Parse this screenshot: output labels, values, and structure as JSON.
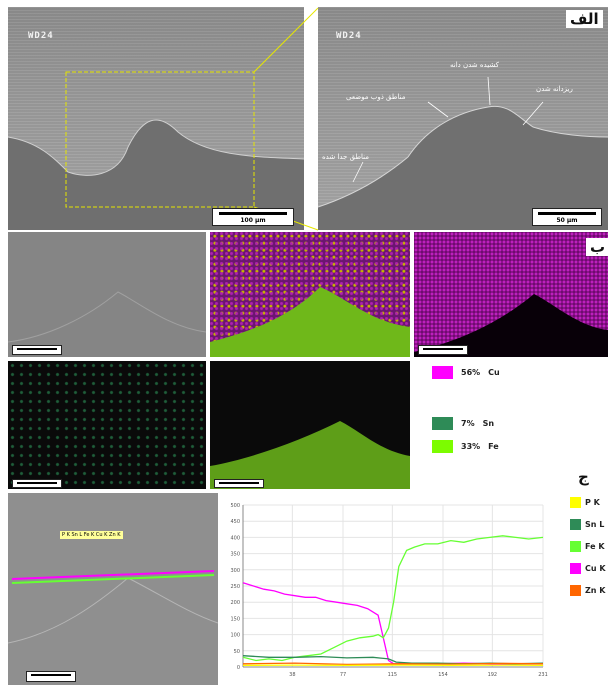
{
  "labels": {
    "a": "الف",
    "b": "ب",
    "c": "ج"
  },
  "sem_tag": "WD24",
  "scale_bars": {
    "s100": "100 µm",
    "s50": "50 µm",
    "s_small": "100 µm"
  },
  "annotations": {
    "stretched_grain": "کشیده شدن دانه",
    "local_melting": "مناطق ذوب موضعی",
    "sand_particles": "ریزدانه شدن",
    "detached_regions": "مناطق جدا شده"
  },
  "eds_legend": [
    {
      "pct": "56%",
      "el": "Cu",
      "color": "#ff00ff"
    },
    {
      "pct": "7%",
      "el": "Sn",
      "color": "#2e8b57"
    },
    {
      "pct": "33%",
      "el": "Fe",
      "color": "#7cfc00"
    }
  ],
  "element_legend": [
    {
      "name": "P K",
      "color": "#ffff00"
    },
    {
      "name": "Sn L",
      "color": "#2e8b57"
    },
    {
      "name": "Fe K",
      "color": "#66ff33"
    },
    {
      "name": "Cu K",
      "color": "#ff00ff"
    },
    {
      "name": "Zn K",
      "color": "#ff6600"
    }
  ],
  "line_tag": "P K  Sn L  Fe K  Cu K  Zn K",
  "chart_data": {
    "type": "line",
    "title": "",
    "xlabel": "",
    "ylabel": "",
    "ylim": [
      0,
      500
    ],
    "xlim": [
      0,
      231
    ],
    "y_ticks": [
      "0",
      "50",
      "100",
      "150",
      "200",
      "250",
      "300",
      "350",
      "400",
      "450",
      "500"
    ],
    "x_ticks": [
      "38",
      "77",
      "115",
      "154",
      "192",
      "231"
    ],
    "series": [
      {
        "name": "Cu K",
        "color": "#ff00ff",
        "x": [
          0,
          8,
          16,
          24,
          32,
          40,
          48,
          56,
          64,
          72,
          80,
          88,
          96,
          104,
          108,
          112,
          116,
          122,
          130,
          150,
          170,
          190,
          210,
          231
        ],
        "values": [
          260,
          250,
          240,
          235,
          225,
          220,
          215,
          215,
          205,
          200,
          195,
          190,
          180,
          160,
          90,
          20,
          10,
          10,
          10,
          10,
          12,
          10,
          10,
          10
        ]
      },
      {
        "name": "Fe K",
        "color": "#66ff33",
        "x": [
          0,
          10,
          20,
          30,
          40,
          50,
          60,
          70,
          80,
          90,
          100,
          104,
          108,
          112,
          116,
          120,
          126,
          132,
          140,
          150,
          160,
          170,
          180,
          190,
          200,
          210,
          220,
          231
        ],
        "values": [
          30,
          20,
          25,
          20,
          30,
          35,
          40,
          60,
          80,
          90,
          95,
          100,
          90,
          120,
          200,
          310,
          360,
          370,
          380,
          380,
          390,
          385,
          395,
          400,
          405,
          400,
          395,
          400
        ]
      },
      {
        "name": "Sn L",
        "color": "#2e8b57",
        "x": [
          0,
          20,
          40,
          60,
          80,
          100,
          112,
          118,
          130,
          150,
          170,
          190,
          210,
          231
        ],
        "values": [
          35,
          30,
          30,
          32,
          28,
          30,
          25,
          15,
          12,
          12,
          10,
          12,
          10,
          12
        ]
      },
      {
        "name": "Zn K",
        "color": "#ff6600",
        "x": [
          0,
          40,
          80,
          120,
          160,
          200,
          231
        ],
        "values": [
          10,
          12,
          8,
          10,
          9,
          11,
          10
        ]
      },
      {
        "name": "P K",
        "color": "#ffff00",
        "x": [
          0,
          40,
          80,
          120,
          160,
          200,
          231
        ],
        "values": [
          5,
          6,
          5,
          6,
          5,
          6,
          5
        ]
      }
    ]
  }
}
